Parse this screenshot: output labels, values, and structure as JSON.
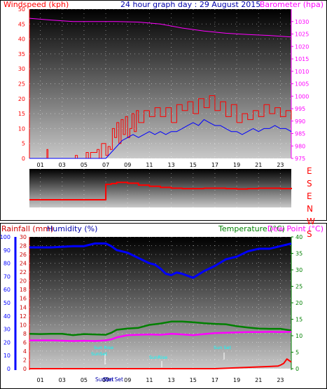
{
  "top": {
    "title": "24 hour graph day : 29 August 2015",
    "left_label": "Windspeed (kph)",
    "right_label": "Barometer (hpa)"
  },
  "bottom": {
    "left_label_1": "Rainfall (mm)",
    "left_label_2": "Humidity (%)",
    "right_label_1": "Temperature (°C)",
    "right_label_2": "Dew Point (°C)",
    "sun_labels": [
      "Sun Rise",
      "Sun Set",
      "SunSet",
      "SunRise",
      "SunSet",
      "Sun Set"
    ]
  },
  "direction_labels": [
    "E",
    "S",
    "E",
    "N",
    "W",
    "S"
  ],
  "hour_ticks": [
    "01",
    "03",
    "05",
    "07",
    "09",
    "11",
    "13",
    "15",
    "17",
    "19",
    "21",
    "23"
  ],
  "colors": {
    "wind": "#ff0000",
    "gust": "#ff0000",
    "avg_wind": "#0000ff",
    "barometer": "#ff00ff",
    "humidity": "#0000ff",
    "temperature": "#008000",
    "dewpoint": "#ff00ff",
    "rain": "#ff0000",
    "sun_marker": "#00ffff"
  },
  "chart_data": [
    {
      "type": "line",
      "title": "24 hour graph day : 29 August 2015",
      "x_ticks": [
        "01",
        "03",
        "05",
        "07",
        "09",
        "11",
        "13",
        "15",
        "17",
        "19",
        "21",
        "23"
      ],
      "axes": {
        "left": {
          "label": "Windspeed (kph)",
          "ylim": [
            0,
            50
          ],
          "ticks": [
            0,
            5,
            10,
            15,
            20,
            25,
            30,
            35,
            40,
            45,
            50
          ]
        },
        "right": {
          "label": "Barometer (hpa)",
          "ylim": [
            975,
            1035
          ],
          "ticks": [
            975,
            980,
            985,
            990,
            995,
            1000,
            1005,
            1010,
            1015,
            1020,
            1025,
            1030
          ]
        }
      },
      "series": [
        {
          "axis": "left",
          "color": "#ff0000",
          "x": [
            0,
            1.5,
            1.6,
            1.7,
            1.8,
            2,
            3,
            4,
            4.2,
            4.4,
            4.6,
            5,
            5.2,
            5.4,
            5.6,
            6,
            6.2,
            6.4,
            6.6,
            7,
            7.2,
            7.4,
            7.6,
            7.8,
            8,
            8.2,
            8.4,
            8.6,
            8.8,
            9,
            9.2,
            9.4,
            9.6,
            9.8,
            10,
            10.5,
            11,
            11.5,
            12,
            12.5,
            13,
            13.5,
            14,
            14.5,
            15,
            15.5,
            16,
            16.5,
            17,
            17.5,
            18,
            18.5,
            19,
            19.5,
            20,
            20.5,
            21,
            21.5,
            22,
            22.5,
            23,
            23.5,
            24
          ],
          "values": [
            0,
            0,
            3,
            0,
            0,
            0,
            0,
            0,
            1,
            0,
            0,
            0,
            2,
            0,
            2,
            2,
            3,
            0,
            5,
            1,
            4,
            3,
            10,
            7,
            12,
            5,
            13,
            8,
            14,
            7,
            10,
            15,
            9,
            16,
            12,
            16,
            14,
            17,
            14,
            17,
            12,
            18,
            16,
            19,
            15,
            20,
            17,
            21,
            16,
            19,
            14,
            18,
            12,
            15,
            13,
            16,
            14,
            18,
            15,
            17,
            14,
            16,
            13
          ],
          "note": "wind speed / gust (red)"
        },
        {
          "axis": "left",
          "color": "#0000ff",
          "x": [
            0,
            6,
            7,
            7.5,
            8,
            8.5,
            9,
            9.5,
            10,
            10.5,
            11,
            11.5,
            12,
            12.5,
            13,
            13.5,
            14,
            14.5,
            15,
            15.5,
            16,
            16.5,
            17,
            17.5,
            18,
            18.5,
            19,
            19.5,
            20,
            20.5,
            21,
            21.5,
            22,
            22.5,
            23,
            23.5,
            24
          ],
          "values": [
            0,
            0,
            0,
            2,
            4,
            6,
            7,
            8,
            7,
            8,
            9,
            8,
            9,
            8,
            9,
            9,
            10,
            11,
            12,
            11,
            13,
            12,
            11,
            11,
            10,
            9,
            9,
            8,
            9,
            10,
            9,
            10,
            10,
            11,
            10,
            10,
            9
          ],
          "note": "average wind (blue)"
        },
        {
          "axis": "right",
          "color": "#ff00ff",
          "x": [
            0,
            2,
            4,
            6,
            8,
            10,
            12,
            14,
            16,
            18,
            20,
            22,
            24
          ],
          "values": [
            1031.3,
            1030.6,
            1030.0,
            1030.0,
            1030.0,
            1029.8,
            1029.0,
            1027.4,
            1026.2,
            1025.3,
            1024.8,
            1024.4,
            1023.8
          ],
          "note": "barometer (magenta)"
        }
      ]
    },
    {
      "type": "line",
      "title": "",
      "x_ticks": [
        "01",
        "03",
        "05",
        "07",
        "09",
        "11",
        "13",
        "15",
        "17",
        "19",
        "21",
        "23"
      ],
      "axes": {
        "left": {
          "label": "Rainfall (mm) / Humidity (%)",
          "rain_ticks": [
            0,
            2,
            4,
            6,
            8,
            10,
            12,
            14,
            16,
            18,
            20,
            22,
            24,
            26,
            28,
            30
          ],
          "humidity_ticks": [
            0,
            10,
            20,
            30,
            40,
            50,
            60,
            70,
            80,
            90,
            100
          ]
        },
        "right": {
          "label": "Temperature (°C) / Dew Point (°C)",
          "ylim": [
            0,
            40
          ],
          "ticks": [
            0,
            5,
            10,
            15,
            20,
            25,
            30,
            35,
            40
          ]
        }
      },
      "series": [
        {
          "name": "Humidity (%)",
          "axis": "humidity",
          "color": "#0000ff",
          "x": [
            0,
            2,
            4,
            5,
            6,
            7,
            7.5,
            8,
            9,
            10,
            11,
            11.5,
            12,
            12.5,
            13,
            13.5,
            14,
            15,
            16,
            16.5,
            17,
            18,
            19,
            20,
            21,
            22,
            23,
            24
          ],
          "values": [
            92,
            92,
            93,
            93,
            95,
            95,
            93,
            90,
            88,
            84,
            80,
            79,
            76,
            72,
            71,
            73,
            72,
            69,
            74,
            76,
            78,
            83,
            85,
            89,
            91,
            91,
            93,
            95
          ]
        },
        {
          "name": "Temperature (°C)",
          "axis": "temp",
          "color": "#008000",
          "x": [
            0,
            1,
            2,
            3,
            4,
            5,
            6,
            7,
            7.5,
            8,
            9,
            10,
            11,
            12,
            13,
            14,
            15,
            16,
            17,
            18,
            19,
            20,
            21,
            22,
            23,
            24
          ],
          "values": [
            10.6,
            10.5,
            10.6,
            10.6,
            10.2,
            10.5,
            10.4,
            10.3,
            10.9,
            11.8,
            12.2,
            12.4,
            13.3,
            13.7,
            14.3,
            14.3,
            14.1,
            13.8,
            13.6,
            13.5,
            12.9,
            12.5,
            12.2,
            12.1,
            12.1,
            11.6
          ]
        },
        {
          "name": "Dew Point (°C)",
          "axis": "temp",
          "color": "#ff00ff",
          "x": [
            0,
            2,
            4,
            5,
            6,
            7,
            7.5,
            8,
            9,
            10,
            11,
            12,
            13,
            14,
            15,
            16,
            17,
            18,
            19,
            20,
            21,
            22,
            23,
            24
          ],
          "values": [
            8.6,
            8.6,
            8.4,
            8.5,
            8.4,
            8.6,
            8.9,
            9.5,
            10.2,
            10.3,
            10.4,
            10.3,
            10.6,
            10.4,
            10.2,
            10.5,
            10.8,
            10.9,
            11.0,
            11.1,
            11.1,
            11.2,
            11.1,
            11.2
          ]
        },
        {
          "name": "Rainfall (mm)",
          "axis": "rain",
          "color": "#ff0000",
          "x": [
            0,
            17,
            18,
            19,
            20,
            21,
            22,
            22.8,
            23,
            23.3,
            23.6,
            24
          ],
          "values": [
            0,
            0,
            0.1,
            0.2,
            0.3,
            0.4,
            0.5,
            0.6,
            0.8,
            1.2,
            2.2,
            1.5
          ]
        }
      ]
    },
    {
      "type": "line",
      "title": "",
      "categories": [
        "E",
        "S",
        "E",
        "N",
        "W",
        "S"
      ],
      "series": [
        {
          "color": "#ff0000",
          "x": [
            0,
            6,
            7,
            7.5,
            8,
            9,
            10,
            11,
            12,
            13,
            14,
            15,
            16,
            17,
            18,
            19,
            20,
            21,
            22,
            23,
            24
          ],
          "values": [
            0.2,
            0.2,
            0.6,
            0.62,
            0.65,
            0.63,
            0.58,
            0.55,
            0.52,
            0.5,
            0.49,
            0.49,
            0.5,
            0.5,
            0.49,
            0.48,
            0.49,
            0.5,
            0.5,
            0.49,
            0.51
          ],
          "note": "wind direction trace, relative height within strip (0 = bottom)"
        }
      ]
    }
  ]
}
